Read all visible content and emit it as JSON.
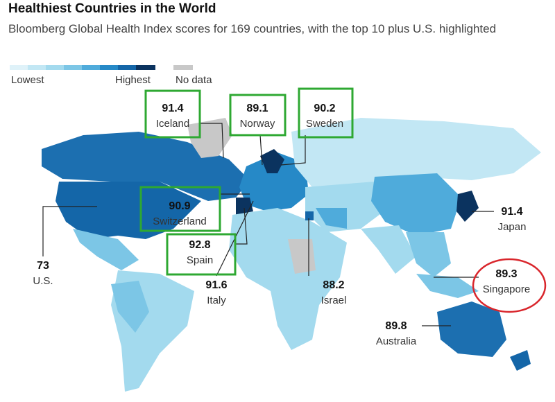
{
  "header": {
    "title": "Healthiest Countries in the World",
    "subtitle": "Bloomberg Global Health Index scores for 169 countries, with the top 10 plus U.S. highlighted"
  },
  "legend": {
    "lowest": "Lowest",
    "highest": "Highest",
    "no_data": "No data"
  },
  "labels": [
    {
      "score": 91.4,
      "country": "Iceland"
    },
    {
      "score": 89.1,
      "country": "Norway"
    },
    {
      "score": 90.2,
      "country": "Sweden"
    },
    {
      "score": 90.9,
      "country": "Switzerland"
    },
    {
      "score": 92.8,
      "country": "Spain"
    },
    {
      "score": 91.6,
      "country": "Italy"
    },
    {
      "score": 88.2,
      "country": "Israel"
    },
    {
      "score": 73,
      "country": "U.S."
    },
    {
      "score": 91.4,
      "country": "Japan"
    },
    {
      "score": 89.3,
      "country": "Singapore"
    },
    {
      "score": 89.8,
      "country": "Australia"
    }
  ]
}
